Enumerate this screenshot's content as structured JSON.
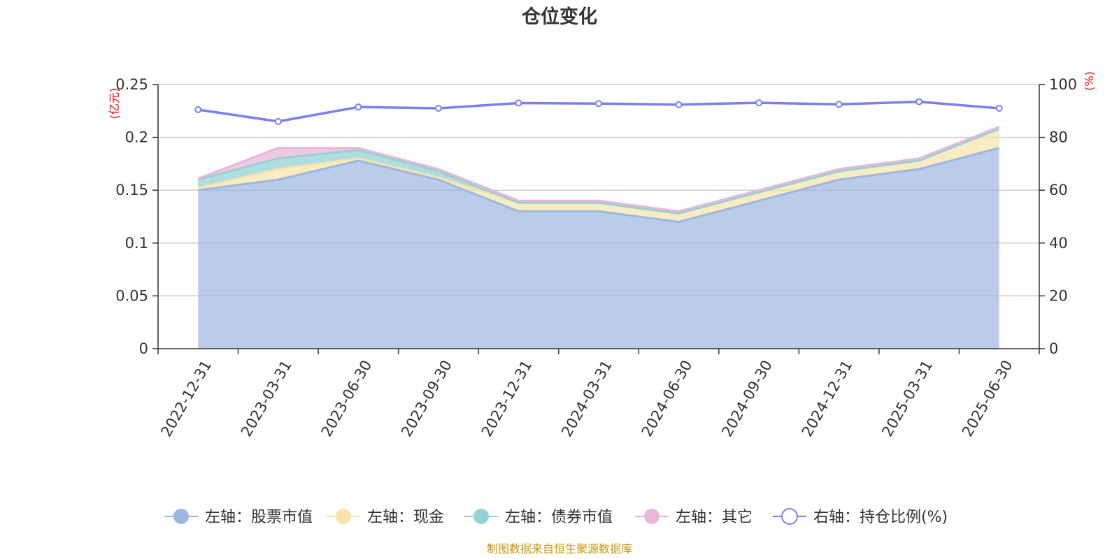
{
  "chart_data": {
    "type": "area",
    "title": "仓位变化",
    "categories": [
      "2022-12-31",
      "2023-03-31",
      "2023-06-30",
      "2023-09-30",
      "2023-12-31",
      "2024-03-31",
      "2024-06-30",
      "2024-09-30",
      "2024-12-31",
      "2025-03-31",
      "2025-06-30"
    ],
    "left_axis": {
      "unit": "(亿元)",
      "ylim": [
        0,
        0.25
      ],
      "ticks": [
        "0",
        "0.05",
        "0.1",
        "0.15",
        "0.2",
        "0.25"
      ]
    },
    "right_axis": {
      "unit": "(%)",
      "ylim": [
        0,
        100
      ],
      "ticks": [
        "0",
        "20",
        "40",
        "60",
        "80",
        "100"
      ]
    },
    "grid": true,
    "legend_position": "bottom",
    "stacked": true,
    "series": [
      {
        "name": "左轴：股票市值",
        "axis": "left",
        "color": "#9db7e0",
        "values": [
          0.15,
          0.16,
          0.178,
          0.16,
          0.13,
          0.13,
          0.12,
          0.14,
          0.16,
          0.17,
          0.19
        ]
      },
      {
        "name": "左轴：现金",
        "axis": "left",
        "color": "#f8e4a8",
        "values": [
          0.002,
          0.01,
          0.002,
          0.002,
          0.008,
          0.008,
          0.008,
          0.008,
          0.008,
          0.008,
          0.018
        ]
      },
      {
        "name": "左轴：债券市值",
        "axis": "left",
        "color": "#96d2d4",
        "values": [
          0.008,
          0.01,
          0.008,
          0.006,
          0,
          0,
          0,
          0,
          0,
          0,
          0
        ]
      },
      {
        "name": "左轴：其它",
        "axis": "left",
        "color": "#e8b7d8",
        "values": [
          0.001,
          0.01,
          0.002,
          0.002,
          0.002,
          0.002,
          0.002,
          0.002,
          0.002,
          0.002,
          0.002
        ]
      },
      {
        "name": "右轴：持仓比例(%)",
        "axis": "right",
        "color": "#7a80f0",
        "type": "line",
        "values": [
          90.5,
          86,
          91.5,
          91,
          93,
          92.8,
          92.4,
          93.1,
          92.5,
          93.5,
          91
        ]
      }
    ]
  },
  "source_note": "制图数据来自恒生聚源数据库"
}
